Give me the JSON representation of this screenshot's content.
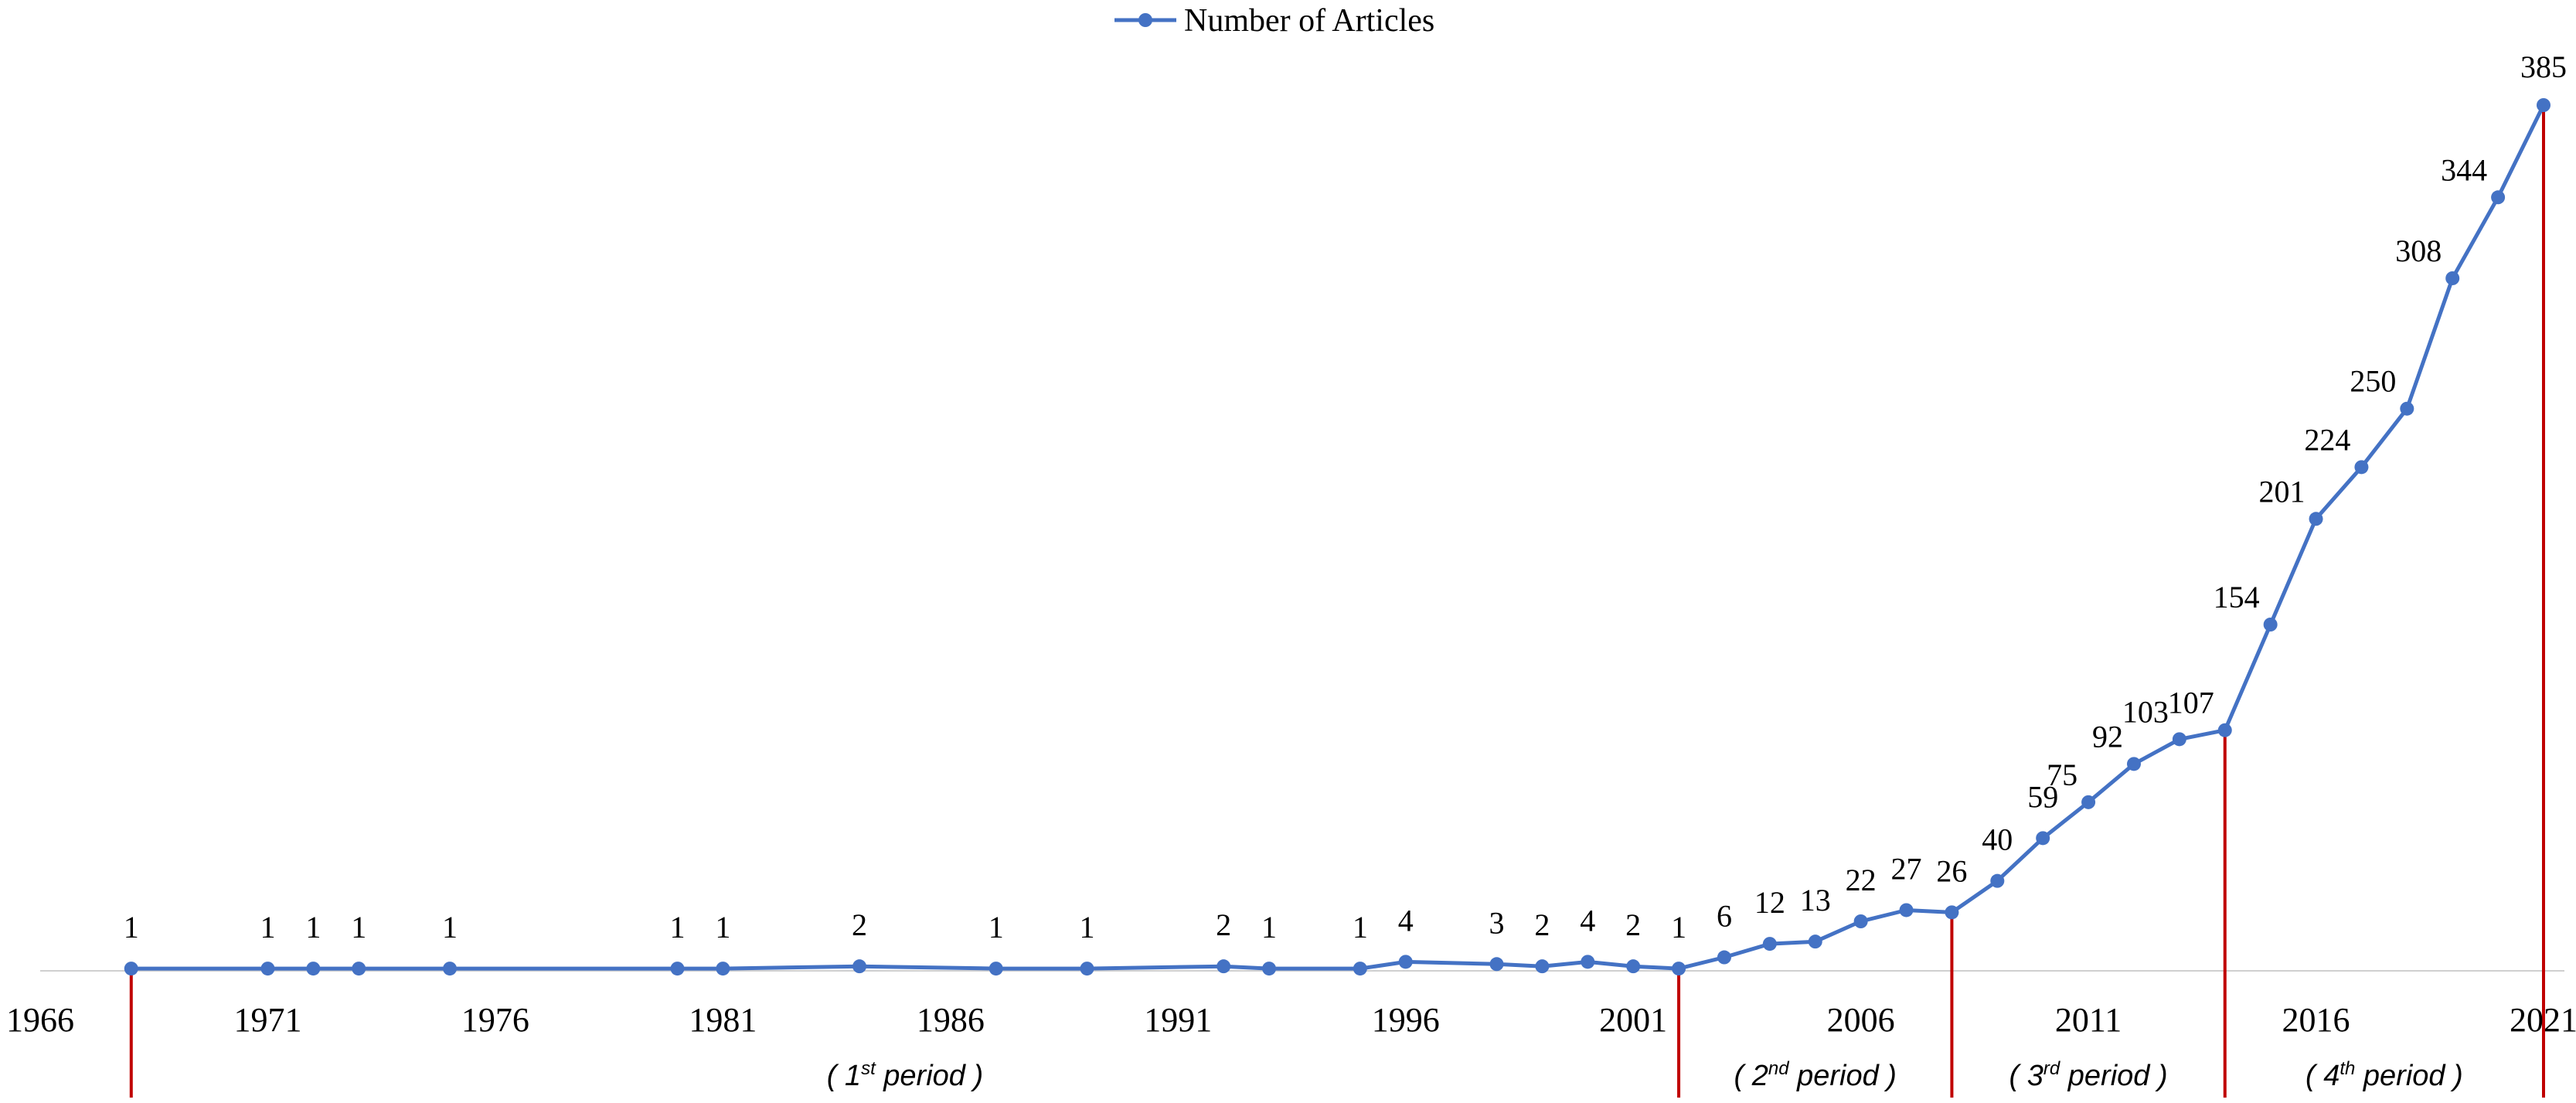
{
  "chart_data": {
    "type": "line",
    "title": "",
    "xlabel": "",
    "ylabel": "",
    "xlim": [
      1966,
      2021
    ],
    "ylim": [
      0,
      385
    ],
    "grid": false,
    "legend": {
      "placement": "top-center",
      "entries": [
        "Number of Articles"
      ]
    },
    "x_ticks": [
      1966,
      1971,
      1976,
      1981,
      1986,
      1991,
      1996,
      2001,
      2006,
      2011,
      2016,
      2021
    ],
    "series": [
      {
        "name": "Number of Articles",
        "color": "#4472C4",
        "x": [
          1968,
          1971,
          1972,
          1973,
          1975,
          1980,
          1981,
          1984,
          1987,
          1989,
          1992,
          1993,
          1995,
          1996,
          1998,
          1999,
          2000,
          2001,
          2002,
          2003,
          2004,
          2005,
          2006,
          2007,
          2008,
          2009,
          2010,
          2011,
          2012,
          2013,
          2014,
          2015,
          2016,
          2017,
          2018,
          2019,
          2020,
          2021
        ],
        "values": [
          1,
          1,
          1,
          1,
          1,
          1,
          1,
          2,
          1,
          1,
          2,
          1,
          1,
          4,
          3,
          2,
          4,
          2,
          1,
          6,
          12,
          13,
          22,
          27,
          26,
          40,
          59,
          75,
          92,
          103,
          107,
          154,
          201,
          224,
          250,
          308,
          344,
          385
        ]
      }
    ],
    "period_dividers": {
      "color": "#C00000",
      "years": [
        1968,
        2002,
        2008,
        2014,
        2021
      ]
    },
    "periods": [
      {
        "pre": "( 1",
        "sup": "st",
        "post": " period )",
        "start": 1968,
        "end": 2002
      },
      {
        "pre": "( 2",
        "sup": "nd",
        "post": " period )",
        "start": 2002,
        "end": 2008
      },
      {
        "pre": "( 3",
        "sup": "rd",
        "post": " period )",
        "start": 2008,
        "end": 2014
      },
      {
        "pre": "( 4",
        "sup": "th",
        "post": " period )",
        "start": 2014,
        "end": 2021
      }
    ]
  }
}
